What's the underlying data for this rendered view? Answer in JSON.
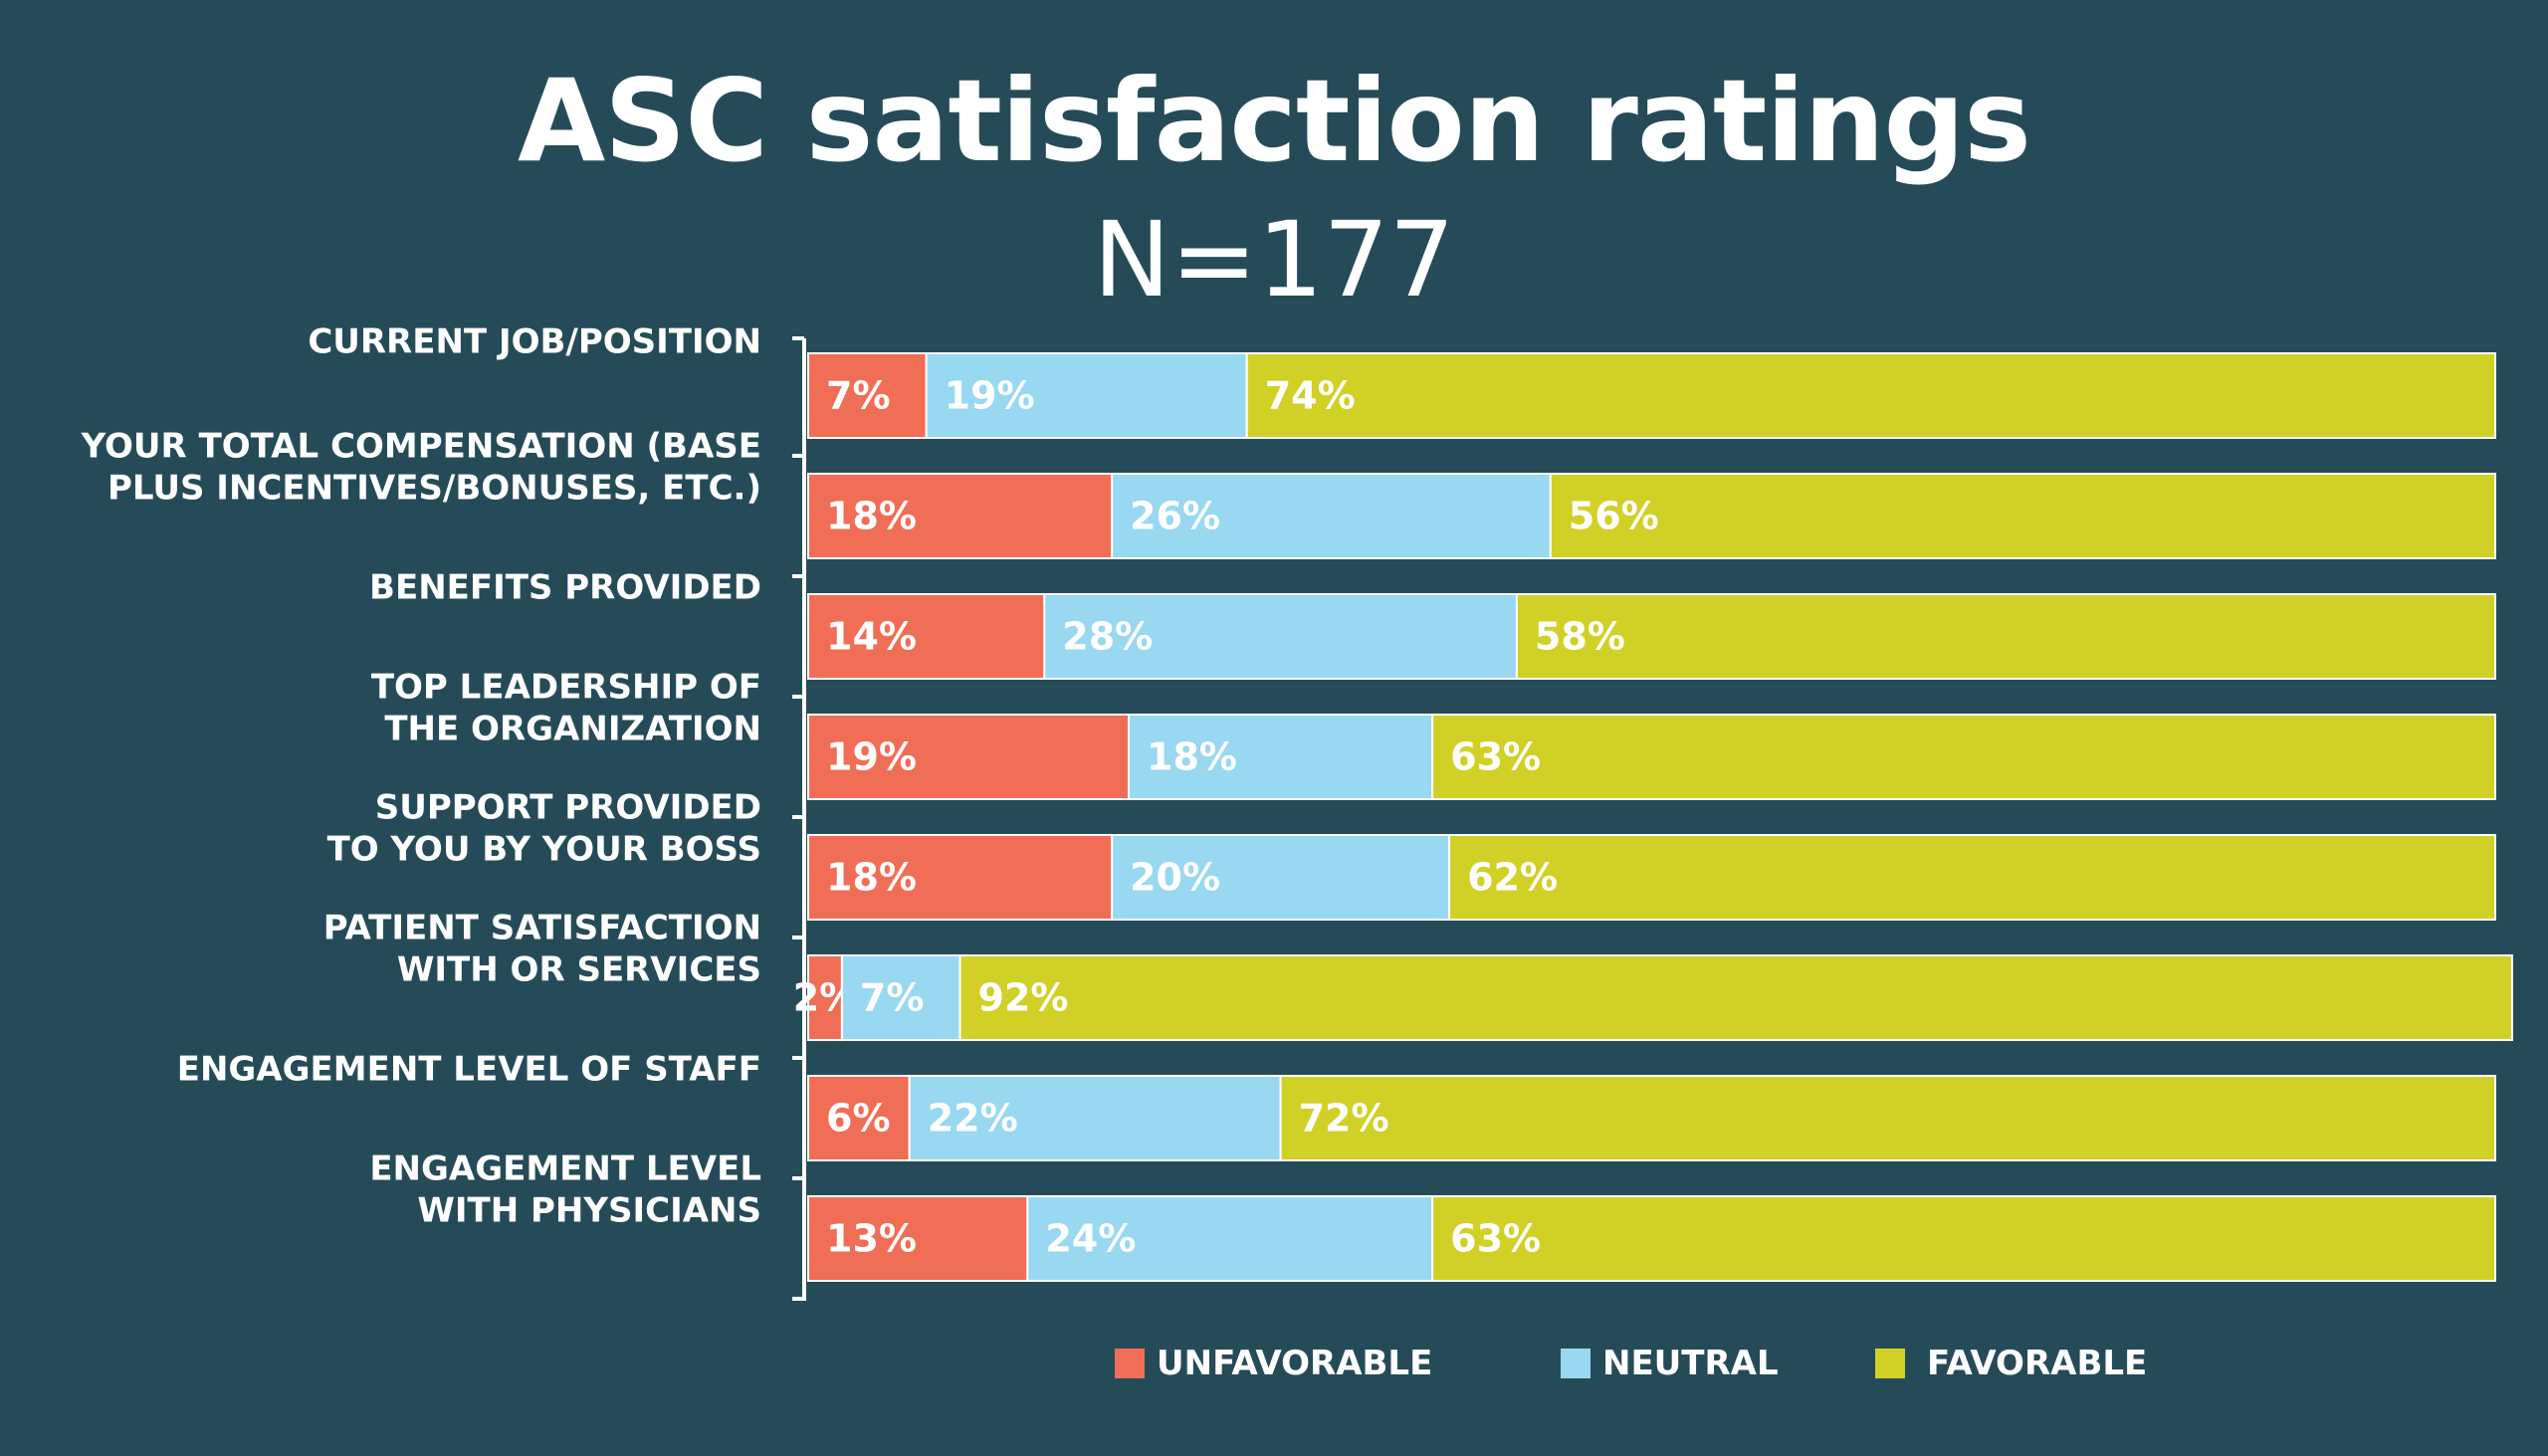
{
  "title": "ASC satisfaction ratings",
  "subtitle": "N=177",
  "colors": {
    "background": "#264b58",
    "unfavorable": "#f06e55",
    "neutral": "#99d8f1",
    "favorable": "#d1d027",
    "text": "#ffffff"
  },
  "legend": [
    {
      "name": "UNFAVORABLE",
      "color": "#f06e55"
    },
    {
      "name": "NEUTRAL",
      "color": "#99d8f1"
    },
    {
      "name": "FAVORABLE",
      "color": "#d1d027"
    }
  ],
  "chart_data": {
    "type": "bar",
    "orientation": "horizontal",
    "stacked": true,
    "title": "ASC satisfaction ratings",
    "subtitle": "N=177",
    "categories": [
      [
        "CURRENT JOB/POSITION"
      ],
      [
        "YOUR TOTAL COMPENSATION (BASE",
        "PLUS INCENTIVES/BONUSES, ETC.)"
      ],
      [
        "BENEFITS PROVIDED"
      ],
      [
        "TOP LEADERSHIP OF",
        "THE ORGANIZATION"
      ],
      [
        "SUPPORT PROVIDED",
        "TO YOU BY YOUR BOSS"
      ],
      [
        "PATIENT SATISFACTION",
        "WITH OR SERVICES"
      ],
      [
        "ENGAGEMENT LEVEL OF STAFF"
      ],
      [
        "ENGAGEMENT LEVEL",
        "WITH PHYSICIANS"
      ]
    ],
    "series": [
      {
        "name": "UNFAVORABLE",
        "values": [
          7,
          18,
          14,
          19,
          18,
          2,
          6,
          13
        ],
        "labels": [
          "7%",
          "18%",
          "14%",
          "19%",
          "18%",
          "2%",
          "6%",
          "13%"
        ]
      },
      {
        "name": "NEUTRAL",
        "values": [
          19,
          26,
          28,
          18,
          20,
          7,
          22,
          24
        ],
        "labels": [
          "19%",
          "26%",
          "28%",
          "18%",
          "20%",
          "7%",
          "22%",
          "24%"
        ]
      },
      {
        "name": "FAVORABLE",
        "values": [
          74,
          56,
          58,
          63,
          62,
          92,
          72,
          63
        ],
        "labels": [
          "74%",
          "56%",
          "58%",
          "63%",
          "62%",
          "92%",
          "72%",
          "63%"
        ]
      }
    ],
    "xlim": [
      0,
      100
    ],
    "legend_position": "bottom",
    "grid": false
  }
}
